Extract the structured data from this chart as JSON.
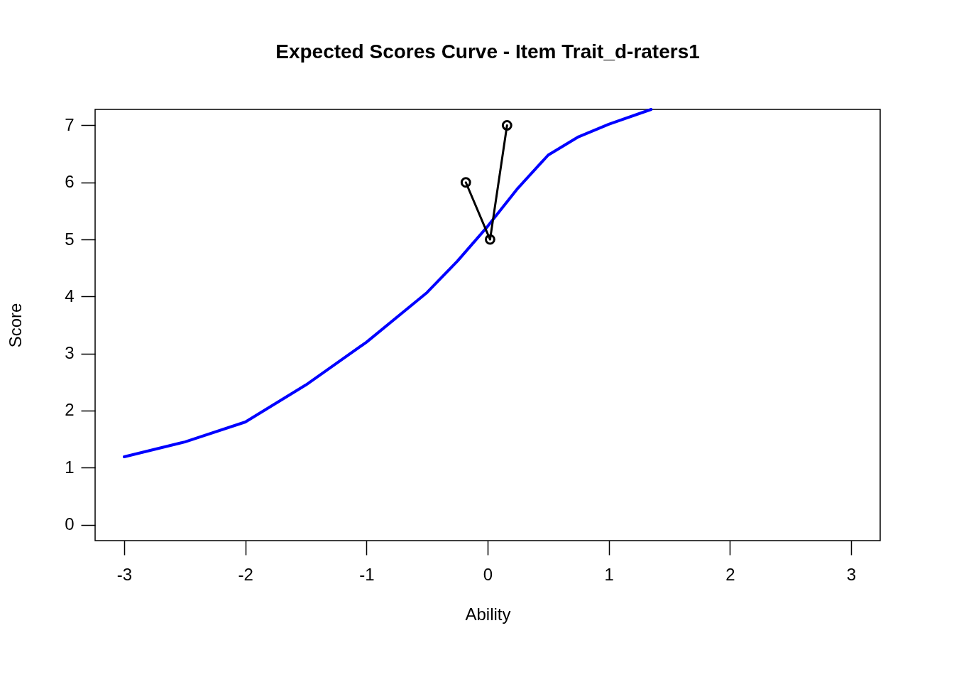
{
  "chart_data": {
    "type": "line",
    "title": "Expected Scores Curve - Item  Trait_d-raters1",
    "xlabel": "Ability",
    "ylabel": "Score",
    "xlim": [
      -3.24,
      3.24
    ],
    "ylim": [
      -0.28,
      7.28
    ],
    "xticks": [
      -3,
      -2,
      -1,
      0,
      1,
      2,
      3
    ],
    "yticks": [
      0,
      1,
      2,
      3,
      4,
      5,
      6,
      7
    ],
    "grid": false,
    "series": [
      {
        "color": "#0000ff",
        "x": [
          -3,
          -2.5,
          -2,
          -1.5,
          -1,
          -0.5,
          -0.25,
          0,
          0.25,
          0.5,
          0.75,
          1,
          1.35
        ],
        "values": [
          1.19,
          1.45,
          1.8,
          2.45,
          3.2,
          4.07,
          4.62,
          5.23,
          5.9,
          6.48,
          6.8,
          7.02,
          7.28
        ],
        "marker": "none"
      },
      {
        "color": "#000000",
        "x": [
          -0.18,
          0.02,
          0.16
        ],
        "values": [
          6,
          5,
          7
        ],
        "marker": "circle"
      }
    ]
  }
}
